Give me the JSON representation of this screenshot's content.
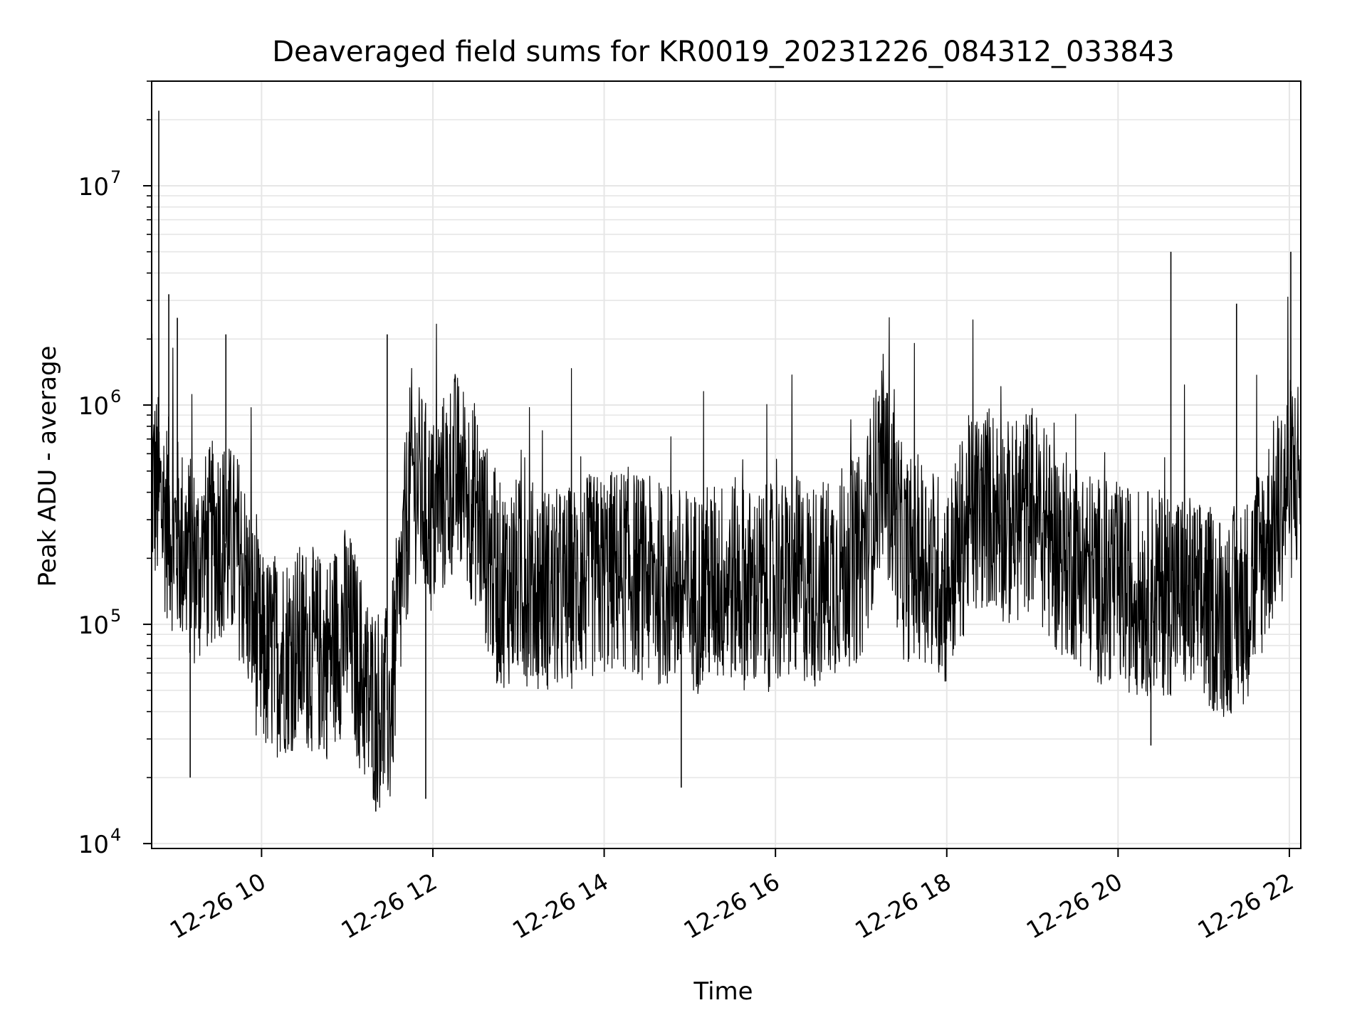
{
  "chart_data": {
    "type": "line",
    "title": "Deaveraged field sums for KR0019_20231226_084312_033843",
    "xlabel": "Time",
    "ylabel": "Peak ADU - average",
    "yscale": "log",
    "ylim": [
      9500,
      30000000
    ],
    "xlim": [
      "2023-12-26 08:43",
      "2023-12-26 22:08"
    ],
    "grid": "major and minor, light gray",
    "x_ticks": [
      "12-26 10",
      "12-26 12",
      "12-26 14",
      "12-26 16",
      "12-26 18",
      "12-26 20",
      "12-26 22"
    ],
    "x_tick_times": [
      "2023-12-26 10:00",
      "2023-12-26 12:00",
      "2023-12-26 14:00",
      "2023-12-26 16:00",
      "2023-12-26 18:00",
      "2023-12-26 20:00",
      "2023-12-26 22:00"
    ],
    "y_ticks": [
      {
        "base": "10",
        "exp": "4",
        "value": 10000
      },
      {
        "base": "10",
        "exp": "5",
        "value": 100000
      },
      {
        "base": "10",
        "exp": "6",
        "value": 1000000
      },
      {
        "base": "10",
        "exp": "7",
        "value": 10000000
      }
    ],
    "line_color": "#000000",
    "series": [
      {
        "x": [
          "2023-12-26 08:43",
          "2023-12-26 09:00",
          "2023-12-26 09:15",
          "2023-12-26 09:30",
          "2023-12-26 09:45",
          "2023-12-26 10:00",
          "2023-12-26 10:15",
          "2023-12-26 10:30",
          "2023-12-26 10:45",
          "2023-12-26 11:00",
          "2023-12-26 11:15",
          "2023-12-26 11:30",
          "2023-12-26 11:45",
          "2023-12-26 12:00",
          "2023-12-26 12:15",
          "2023-12-26 12:30",
          "2023-12-26 12:45",
          "2023-12-26 13:00",
          "2023-12-26 13:15",
          "2023-12-26 13:30",
          "2023-12-26 13:45",
          "2023-12-26 14:00",
          "2023-12-26 14:15",
          "2023-12-26 14:30",
          "2023-12-26 14:45",
          "2023-12-26 15:00",
          "2023-12-26 15:15",
          "2023-12-26 15:30",
          "2023-12-26 15:45",
          "2023-12-26 16:00",
          "2023-12-26 16:15",
          "2023-12-26 16:30",
          "2023-12-26 16:45",
          "2023-12-26 17:00",
          "2023-12-26 17:15",
          "2023-12-26 17:30",
          "2023-12-26 17:45",
          "2023-12-26 18:00",
          "2023-12-26 18:15",
          "2023-12-26 18:30",
          "2023-12-26 18:45",
          "2023-12-26 19:00",
          "2023-12-26 19:15",
          "2023-12-26 19:30",
          "2023-12-26 19:45",
          "2023-12-26 20:00",
          "2023-12-26 20:15",
          "2023-12-26 20:30",
          "2023-12-26 20:45",
          "2023-12-26 21:00",
          "2023-12-26 21:15",
          "2023-12-26 21:30",
          "2023-12-26 21:45",
          "2023-12-26 22:00",
          "2023-12-26 22:08"
        ],
        "y": [
          450000,
          250000,
          180000,
          260000,
          200000,
          70000,
          75000,
          80000,
          70000,
          100000,
          45000,
          40000,
          500000,
          300000,
          500000,
          350000,
          150000,
          160000,
          150000,
          140000,
          160000,
          170000,
          180000,
          160000,
          150000,
          140000,
          150000,
          160000,
          140000,
          150000,
          160000,
          150000,
          180000,
          200000,
          600000,
          200000,
          200000,
          150000,
          300000,
          350000,
          280000,
          350000,
          220000,
          200000,
          160000,
          150000,
          140000,
          140000,
          140000,
          120000,
          110000,
          130000,
          250000,
          450000,
          500000
        ]
      }
    ],
    "spikes": [
      {
        "x": "2023-12-26 08:48",
        "y": 22000000
      },
      {
        "x": "2023-12-26 08:55",
        "y": 3200000
      },
      {
        "x": "2023-12-26 09:01",
        "y": 2500000
      },
      {
        "x": "2023-12-26 09:35",
        "y": 2100000
      },
      {
        "x": "2023-12-26 11:28",
        "y": 2100000
      },
      {
        "x": "2023-12-26 20:37",
        "y": 5000000
      },
      {
        "x": "2023-12-26 21:23",
        "y": 2900000
      },
      {
        "x": "2023-12-26 22:01",
        "y": 5000000
      }
    ],
    "dips": [
      {
        "x": "2023-12-26 09:10",
        "y": 20000
      },
      {
        "x": "2023-12-26 11:20",
        "y": 14000
      },
      {
        "x": "2023-12-26 11:55",
        "y": 16000
      },
      {
        "x": "2023-12-26 14:54",
        "y": 18000
      },
      {
        "x": "2023-12-26 20:23",
        "y": 28000
      }
    ]
  }
}
